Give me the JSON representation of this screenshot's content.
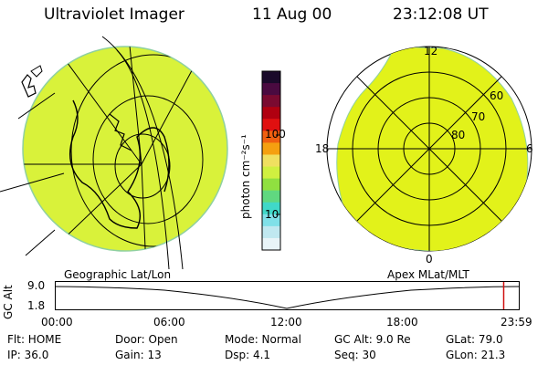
{
  "header": {
    "title": "Ultraviolet Imager",
    "date": "11 Aug 00",
    "time": "23:12:08 UT"
  },
  "left_panel": {
    "caption": "Geographic Lat/Lon",
    "fill_color": "#d9f23a"
  },
  "right_panel": {
    "caption": "Apex MLat/MLT",
    "mlt_labels": [
      "12",
      "18",
      "6",
      "0"
    ],
    "lat_labels": [
      "60",
      "70",
      "80"
    ],
    "fill_color": "#e2f21a"
  },
  "colorbar": {
    "label": "photon cm⁻²s⁻¹",
    "ticks": [
      "100",
      "10"
    ],
    "colors": [
      "#1a0a2a",
      "#4a0a40",
      "#7a0a30",
      "#b00010",
      "#e01010",
      "#f06010",
      "#f5a010",
      "#f0e060",
      "#d0f040",
      "#90e040",
      "#60d880",
      "#40d8c8",
      "#80e0e8",
      "#c0e8f0",
      "#e8f4f8"
    ]
  },
  "timeline": {
    "ylabel": "GC Alt",
    "yticks": [
      "9.0",
      "1.8"
    ],
    "xticks": [
      "00:00",
      "06:00",
      "12:00",
      "18:00",
      "23:59"
    ],
    "marker_fraction": 0.9665
  },
  "info": {
    "flt": "Flt: HOME",
    "ip": "IP: 36.0",
    "door": "Door: Open",
    "gain": "Gain: 13",
    "mode": "Mode: Normal",
    "dsp": "Dsp:     4.1",
    "gcalt": "GC Alt: 9.0 Re",
    "seq": "Seq: 30",
    "glat": "GLat:  79.0",
    "glon": "GLon:  21.3"
  }
}
